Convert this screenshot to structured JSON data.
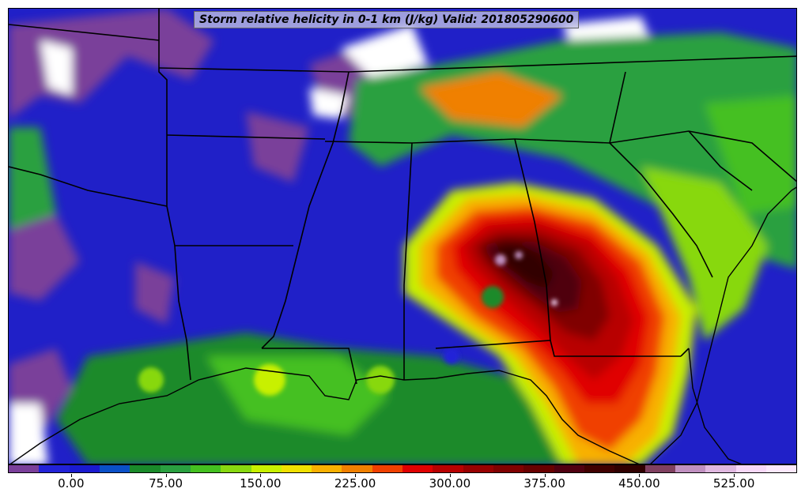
{
  "title": "Storm relative helicity in 0-1 km (J/kg) Valid: 201805290600",
  "colorbar": {
    "min": -50,
    "max": 575,
    "step": 25,
    "colors": [
      "#7a3f9a",
      "#2222d8",
      "#1a1ad0",
      "#0a50c8",
      "#1a8a2a",
      "#2aa040",
      "#44c020",
      "#88d810",
      "#c8f000",
      "#f0e000",
      "#f8b000",
      "#f08000",
      "#f04000",
      "#e00000",
      "#b80000",
      "#980000",
      "#800000",
      "#680000",
      "#500010",
      "#400000",
      "#300000",
      "#804060",
      "#c090c0",
      "#e0b8e0",
      "#f8d8f8",
      "#fce8fc"
    ],
    "ticks": [
      "0.00",
      "75.00",
      "150.00",
      "225.00",
      "300.00",
      "375.00",
      "450.00",
      "525.00"
    ],
    "tick_values": [
      0,
      75,
      150,
      225,
      300,
      375,
      450,
      525
    ]
  },
  "map": {
    "region": "Southeastern United States",
    "background_color": "#2020c8",
    "line_color": "#000000"
  }
}
